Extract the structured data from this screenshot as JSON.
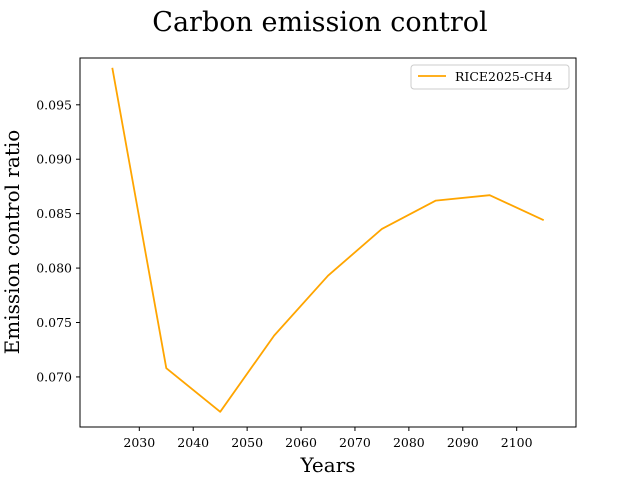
{
  "chart_data": {
    "type": "line",
    "title": "Carbon emission control",
    "xlabel": "Years",
    "ylabel": "Emission control ratio",
    "xlim": [
      2019.0,
      2111.0
    ],
    "ylim": [
      0.0654,
      0.0993
    ],
    "xticks": [
      2030,
      2040,
      2050,
      2060,
      2070,
      2080,
      2090,
      2100
    ],
    "yticks": [
      0.07,
      0.075,
      0.08,
      0.085,
      0.09,
      0.095
    ],
    "xtick_labels": [
      "2030",
      "2040",
      "2050",
      "2060",
      "2070",
      "2080",
      "2090",
      "2100"
    ],
    "ytick_labels": [
      "0.070",
      "0.075",
      "0.080",
      "0.085",
      "0.090",
      "0.095"
    ],
    "grid": false,
    "legend_position": "top-right",
    "series": [
      {
        "name": "RICE2025-CH4",
        "color": "#ffa500",
        "x": [
          2025,
          2035,
          2045,
          2055,
          2065,
          2075,
          2085,
          2095,
          2105
        ],
        "y": [
          0.0984,
          0.0708,
          0.0668,
          0.0738,
          0.0793,
          0.0836,
          0.0862,
          0.0867,
          0.0844
        ]
      }
    ]
  }
}
